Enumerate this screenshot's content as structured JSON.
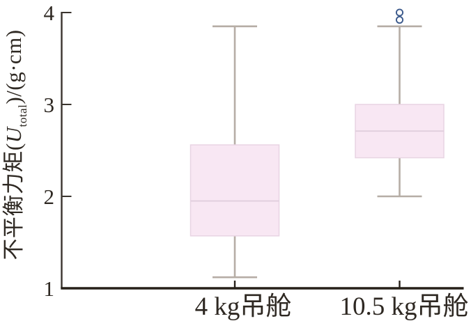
{
  "figure": {
    "ylabel": {
      "prefix": "不平衡力矩(",
      "variable": "U",
      "subscript": "total",
      "suffix": ")/(g·cm)"
    }
  },
  "chart_data": {
    "type": "boxplot",
    "title": "",
    "ylabel": "不平衡力矩(U_total)/(g·cm)",
    "xlabel": "",
    "categories": [
      "4 kg吊舱",
      "10.5 kg吊舱"
    ],
    "ylim": [
      1,
      4
    ],
    "yticks": [
      "1",
      "2",
      "3",
      "4"
    ],
    "grid": false,
    "legend_position": "none",
    "series": [
      {
        "name": "4 kg吊舱",
        "whisker_low": 1.12,
        "q1": 1.57,
        "median": 1.95,
        "q3": 2.56,
        "whisker_high": 3.85,
        "outliers": []
      },
      {
        "name": "10.5 kg吊舱",
        "whisker_low": 2.0,
        "q1": 2.42,
        "median": 2.71,
        "q3": 3.0,
        "whisker_high": 3.85,
        "outliers": [
          3.92,
          4.0
        ]
      }
    ],
    "colors": {
      "box_fill": "#f8e7f3",
      "box_border": "#e8d4e3",
      "median_line": "#dfcddc",
      "whisker": "#b6ada5",
      "outlier_stroke": "#3c5a8c",
      "outlier_fill": "#ffffff",
      "axis_line": "#262019",
      "spine_line": "#3a342e",
      "tick_label": "#2e2822",
      "background": "#ffffff"
    }
  }
}
